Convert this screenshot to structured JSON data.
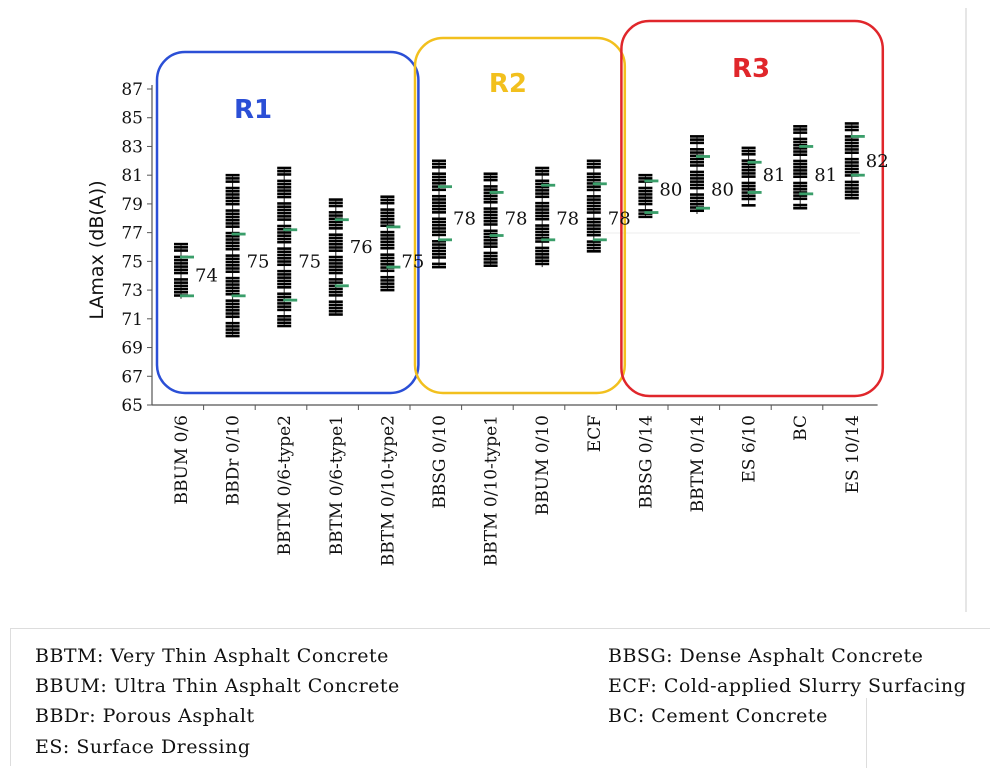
{
  "chart_data": {
    "type": "scatter",
    "ylabel": "LAmax (dB(A))",
    "ylim": [
      65,
      87
    ],
    "yticks": [
      65,
      67,
      69,
      71,
      73,
      75,
      77,
      79,
      81,
      83,
      85,
      87
    ],
    "categories": [
      "BBUM 0/6",
      "BBDr 0/10",
      "BBTM 0/6-type2",
      "BBTM 0/6-type1",
      "BBTM 0/10-type2",
      "BBSG 0/10",
      "BBTM 0/10-type1",
      "BBUM 0/10",
      "ECF",
      "BBSG 0/14",
      "BBTM 0/14",
      "ES 6/10",
      "BC",
      "ES 10/14"
    ],
    "series": [
      {
        "values": [
          74,
          75,
          75,
          76,
          75,
          78,
          78,
          78,
          78,
          80,
          80,
          81,
          81,
          82
        ]
      }
    ],
    "value_labels": [
      "74",
      "75",
      "75",
      "76",
      "75",
      "78",
      "78",
      "78",
      "78",
      "80",
      "80",
      "81",
      "81",
      "82"
    ],
    "ranges": [
      [
        72.4,
        76.2
      ],
      [
        69.8,
        81.0
      ],
      [
        70.5,
        81.5
      ],
      [
        71.3,
        79.3
      ],
      [
        73.0,
        79.5
      ],
      [
        74.6,
        82.0
      ],
      [
        74.7,
        81.1
      ],
      [
        74.6,
        81.5
      ],
      [
        75.7,
        82.0
      ],
      [
        78.1,
        81.0
      ],
      [
        78.3,
        83.7
      ],
      [
        78.9,
        82.9
      ],
      [
        78.7,
        84.4
      ],
      [
        79.4,
        84.6
      ]
    ],
    "green_marks": [
      [
        72.6,
        75.3
      ],
      [
        72.6,
        76.9
      ],
      [
        72.3,
        77.2
      ],
      [
        73.3,
        77.9
      ],
      [
        74.6,
        77.4
      ],
      [
        76.5,
        80.2
      ],
      [
        76.8,
        79.8
      ],
      [
        76.5,
        80.3
      ],
      [
        76.5,
        80.4
      ],
      [
        78.4,
        80.6
      ],
      [
        78.7,
        82.3
      ],
      [
        79.8,
        81.9
      ],
      [
        79.7,
        83.0
      ],
      [
        81.0,
        83.7
      ]
    ],
    "regions": [
      {
        "label": "R1",
        "color": "#2b4fd6",
        "categories": [
          0,
          4
        ]
      },
      {
        "label": "R2",
        "color": "#f2c01e",
        "categories": [
          5,
          8
        ]
      },
      {
        "label": "R3",
        "color": "#e0262b",
        "categories": [
          9,
          13
        ]
      }
    ],
    "grid": false,
    "colors": {
      "points": "#000000",
      "marks": "#3a9e6a",
      "reference_line": "#dddddd"
    }
  },
  "legend": {
    "left": [
      "BBTM: Very Thin Asphalt Concrete",
      "BBUM: Ultra Thin Asphalt Concrete",
      "BBDr: Porous Asphalt",
      "ES: Surface Dressing"
    ],
    "right": [
      "BBSG: Dense Asphalt Concrete",
      "ECF: Cold-applied Slurry Surfacing",
      "BC: Cement Concrete"
    ]
  }
}
